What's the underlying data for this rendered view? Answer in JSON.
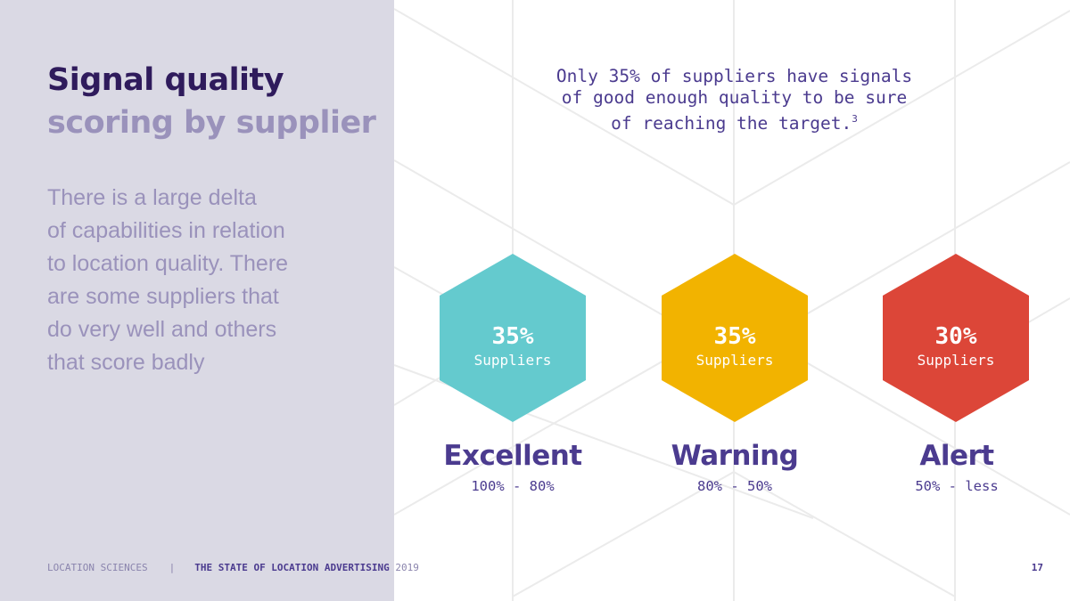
{
  "title": {
    "line1": "Signal quality",
    "line2": "scoring by supplier"
  },
  "body": {
    "lines": [
      "There is a large delta",
      "of capabilities in relation",
      "to location quality. There",
      "are some suppliers that",
      "do very well and others",
      "that score badly"
    ]
  },
  "headline": {
    "line1": "Only 35% of suppliers have signals",
    "line2": "of good enough quality to be sure",
    "line3": "of reaching the target.",
    "footnote_marker": "3"
  },
  "categories": [
    {
      "percent": "35%",
      "unit": "Suppliers",
      "name": "Excellent",
      "range": "100% - 80%",
      "color": "#64cace"
    },
    {
      "percent": "35%",
      "unit": "Suppliers",
      "name": "Warning",
      "range": "80% - 50%",
      "color": "#f2b300"
    },
    {
      "percent": "30%",
      "unit": "Suppliers",
      "name": "Alert",
      "range": "50% - less",
      "color": "#dc4638"
    }
  ],
  "footer": {
    "company": "LOCATION SCIENCES",
    "separator": "|",
    "report": "THE STATE OF LOCATION ADVERTISING",
    "year": "2019",
    "page_number": "17"
  }
}
